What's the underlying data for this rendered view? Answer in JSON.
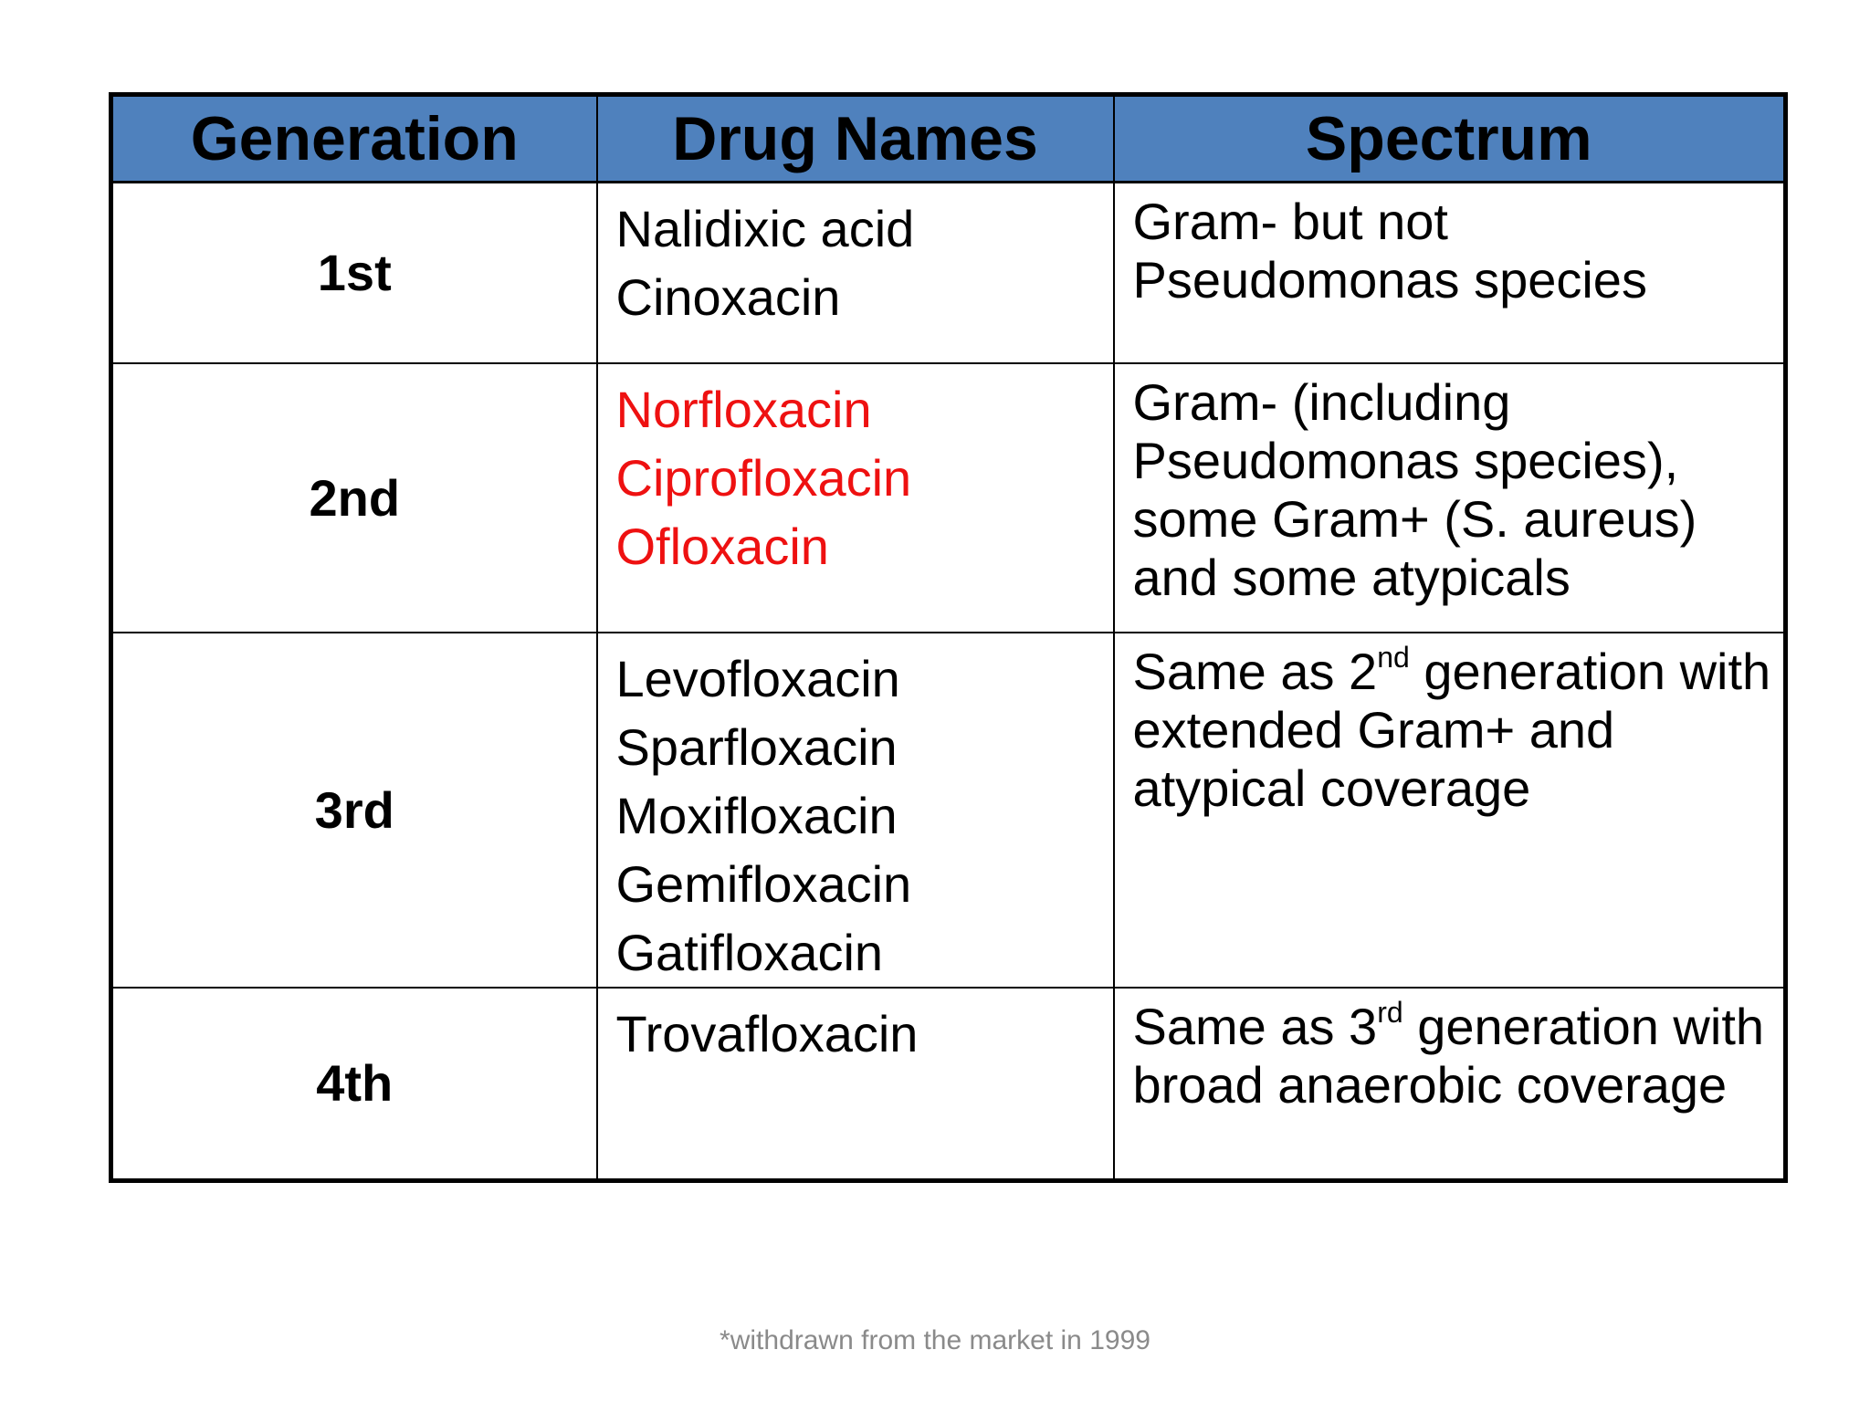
{
  "table": {
    "headers": [
      "Generation",
      "Drug Names",
      "Spectrum"
    ],
    "rows": [
      {
        "generation": "1st",
        "drugs": [
          "Nalidixic acid",
          "Cinoxacin"
        ],
        "drug_color": "#000000",
        "spectrum_line1": "Gram- but not Pseudomonas species"
      },
      {
        "generation": "2nd",
        "drugs": [
          "Norfloxacin",
          "Ciprofloxacin",
          "Ofloxacin"
        ],
        "drug_color": "#ee1111",
        "spectrum_line1": "Gram- (including Pseudomonas species), some Gram+ (S. aureus) and some atypicals"
      },
      {
        "generation": "3rd",
        "drugs": [
          "Levofloxacin",
          "Sparfloxacin",
          "Moxifloxacin",
          "Gemifloxacin",
          "Gatifloxacin"
        ],
        "drug_color": "#000000",
        "spectrum_pre": "Same as 2",
        "spectrum_sup": "nd",
        "spectrum_post": " generation with extended Gram+ and atypical coverage"
      },
      {
        "generation": "4th",
        "drugs": [
          "Trovafloxacin"
        ],
        "drug_color": "#000000",
        "spectrum_pre": "Same as 3",
        "spectrum_sup": "rd",
        "spectrum_post": " generation with broad anaerobic coverage"
      }
    ],
    "header_color": "#4f81bd"
  },
  "footnote": "*withdrawn from the market in 1999"
}
